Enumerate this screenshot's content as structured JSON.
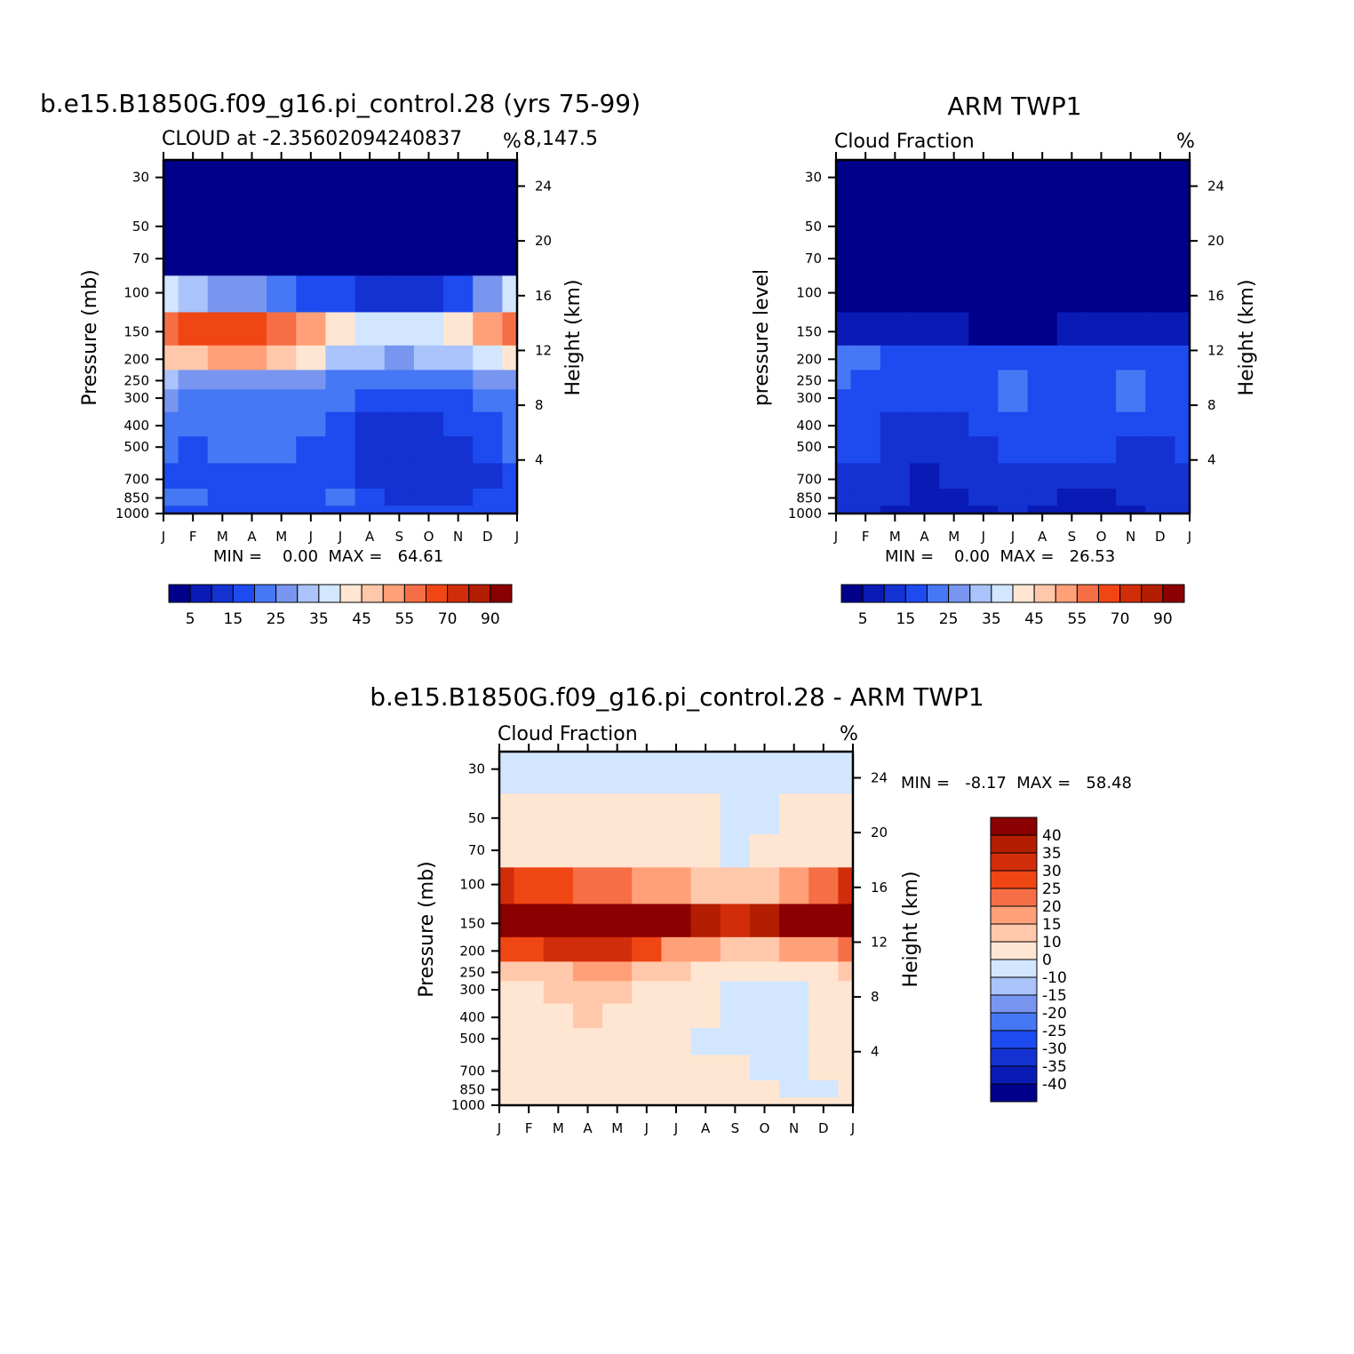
{
  "colors": {
    "levels": [
      "#00008b",
      "#0a1ab4",
      "#1432d2",
      "#1e4bf0",
      "#4678f5",
      "#7896f0",
      "#aac3fa",
      "#d2e6ff",
      "#ffe6d2",
      "#ffc8aa",
      "#ffa078",
      "#f56e46",
      "#f04614",
      "#d22d0a",
      "#b41e00",
      "#8b0000"
    ]
  },
  "top_left": {
    "title": "b.e15.B1850G.f09_g16.pi_control.28 (yrs 75-99)",
    "subtitle_left": "CLOUD at -2.35602094240837",
    "subtitle_right": "8,147.5",
    "units": "%",
    "ylabel": "Pressure (mb)",
    "ylabel_right": "Height (km)",
    "minmax": "MIN =    0.00  MAX =   64.61",
    "colorbar_labels": [
      "5",
      "15",
      "25",
      "35",
      "45",
      "55",
      "70",
      "90"
    ]
  },
  "top_right": {
    "title": "ARM TWP1",
    "subtitle_left": "Cloud Fraction",
    "units": "%",
    "ylabel": "pressure level",
    "ylabel_right": "Height (km)",
    "minmax": "MIN =    0.00  MAX =   26.53",
    "colorbar_labels": [
      "5",
      "15",
      "25",
      "35",
      "45",
      "55",
      "70",
      "90"
    ]
  },
  "bottom": {
    "title": "b.e15.B1850G.f09_g16.pi_control.28 - ARM TWP1",
    "subtitle_left": "Cloud Fraction",
    "units": "%",
    "ylabel": "Pressure (mb)",
    "ylabel_right": "Height (km)",
    "minmax": "MIN =   -8.17  MAX =   58.48",
    "colorbar_labels": [
      "40",
      "35",
      "30",
      "25",
      "20",
      "15",
      "10",
      "0",
      "-10",
      "-15",
      "-20",
      "-25",
      "-30",
      "-35",
      "-40"
    ]
  },
  "axes": {
    "months": [
      "J",
      "F",
      "M",
      "A",
      "M",
      "J",
      "J",
      "A",
      "S",
      "O",
      "N",
      "D",
      "J"
    ],
    "pressure_ticks": [
      "30",
      "50",
      "70",
      "100",
      "150",
      "200",
      "250",
      "300",
      "400",
      "500",
      "700",
      "850",
      "1000"
    ],
    "height_ticks": [
      "24",
      "20",
      "16",
      "12",
      "8",
      "4"
    ]
  },
  "chart_data": [
    {
      "type": "heatmap",
      "title": "b.e15.B1850G.f09_g16.pi_control.28 (yrs 75-99)",
      "subtitle": "CLOUD at -2.35602094240837 8,147.5",
      "xlabel": "",
      "ylabel": "Pressure (mb)",
      "ylabel_right": "Height (km)",
      "x": [
        "J",
        "F",
        "M",
        "A",
        "M",
        "J",
        "J",
        "A",
        "S",
        "O",
        "N",
        "D",
        "J"
      ],
      "y": [
        30,
        50,
        70,
        100,
        150,
        200,
        250,
        300,
        400,
        500,
        700,
        850,
        1000
      ],
      "y_scale": "log",
      "ylim": [
        1000,
        25
      ],
      "levels": [
        5,
        10,
        15,
        20,
        25,
        30,
        35,
        40,
        45,
        50,
        55,
        60,
        70,
        80,
        90
      ],
      "min": 0.0,
      "max": 64.61,
      "units": "%",
      "values": [
        [
          0,
          0,
          0,
          0,
          0,
          0,
          0,
          0,
          0,
          0,
          0,
          0,
          0
        ],
        [
          0,
          0,
          0,
          0,
          0,
          0,
          0,
          0,
          0,
          0,
          0,
          0,
          0
        ],
        [
          0,
          0,
          0,
          0,
          0,
          0,
          0,
          0,
          0,
          0,
          0,
          0,
          0
        ],
        [
          35,
          30,
          28,
          25,
          22,
          18,
          15,
          14,
          13,
          14,
          16,
          25,
          35
        ],
        [
          55,
          60,
          62,
          62,
          58,
          52,
          42,
          38,
          36,
          38,
          42,
          50,
          58
        ],
        [
          45,
          48,
          50,
          50,
          48,
          42,
          32,
          30,
          28,
          30,
          32,
          38,
          42
        ],
        [
          30,
          28,
          28,
          28,
          27,
          26,
          24,
          22,
          20,
          20,
          22,
          25,
          28
        ],
        [
          25,
          24,
          24,
          24,
          23,
          22,
          20,
          18,
          16,
          16,
          18,
          20,
          22
        ],
        [
          22,
          20,
          20,
          21,
          20,
          20,
          18,
          14,
          13,
          14,
          15,
          18,
          20
        ],
        [
          20,
          18,
          22,
          22,
          20,
          18,
          16,
          14,
          12,
          12,
          14,
          18,
          20
        ],
        [
          18,
          18,
          18,
          16,
          16,
          16,
          15,
          14,
          12,
          10,
          10,
          14,
          16
        ],
        [
          20,
          20,
          18,
          18,
          18,
          18,
          20,
          16,
          14,
          12,
          12,
          15,
          18
        ],
        [
          15,
          15,
          15,
          15,
          15,
          15,
          15,
          15,
          15,
          15,
          15,
          15,
          15
        ]
      ]
    },
    {
      "type": "heatmap",
      "title": "ARM TWP1",
      "subtitle": "Cloud Fraction",
      "xlabel": "",
      "ylabel": "pressure level",
      "ylabel_right": "Height (km)",
      "x": [
        "J",
        "F",
        "M",
        "A",
        "M",
        "J",
        "J",
        "A",
        "S",
        "O",
        "N",
        "D",
        "J"
      ],
      "y": [
        30,
        50,
        70,
        100,
        150,
        200,
        250,
        300,
        400,
        500,
        700,
        850,
        1000
      ],
      "y_scale": "log",
      "ylim": [
        1000,
        25
      ],
      "levels": [
        5,
        10,
        15,
        20,
        25,
        30,
        35,
        40,
        45,
        50,
        55,
        60,
        70,
        80,
        90
      ],
      "min": 0.0,
      "max": 26.53,
      "units": "%",
      "values": [
        [
          0,
          0,
          0,
          0,
          0,
          0,
          0,
          0,
          0,
          0,
          0,
          0,
          0
        ],
        [
          0,
          0,
          0,
          0,
          0,
          0,
          0,
          0,
          0,
          0,
          0,
          0,
          0
        ],
        [
          0,
          0,
          0,
          0,
          0,
          0,
          0,
          0,
          0,
          0,
          0,
          0,
          0
        ],
        [
          1,
          1,
          1,
          1,
          1,
          1,
          1,
          1,
          1,
          1,
          1,
          1,
          1
        ],
        [
          6,
          6,
          5,
          5,
          5,
          4,
          4,
          4,
          5,
          5,
          5,
          6,
          6
        ],
        [
          20,
          20,
          16,
          15,
          15,
          15,
          18,
          16,
          16,
          16,
          16,
          16,
          18
        ],
        [
          20,
          18,
          16,
          15,
          15,
          16,
          22,
          16,
          16,
          16,
          20,
          16,
          18
        ],
        [
          18,
          16,
          15,
          15,
          15,
          16,
          22,
          16,
          15,
          15,
          20,
          16,
          16
        ],
        [
          15,
          15,
          14,
          11,
          14,
          15,
          18,
          16,
          15,
          15,
          15,
          15,
          15
        ],
        [
          15,
          15,
          14,
          10,
          12,
          14,
          16,
          16,
          15,
          15,
          14,
          14,
          15
        ],
        [
          14,
          12,
          11,
          8,
          10,
          11,
          12,
          11,
          10,
          10,
          11,
          12,
          14
        ],
        [
          12,
          12,
          10,
          8,
          9,
          10,
          11,
          10,
          9,
          9,
          10,
          11,
          12
        ],
        [
          10,
          10,
          9,
          8,
          8,
          9,
          10,
          9,
          8,
          8,
          9,
          10,
          10
        ]
      ]
    },
    {
      "type": "heatmap",
      "title": "b.e15.B1850G.f09_g16.pi_control.28 - ARM TWP1",
      "subtitle": "Cloud Fraction",
      "xlabel": "",
      "ylabel": "Pressure (mb)",
      "ylabel_right": "Height (km)",
      "x": [
        "J",
        "F",
        "M",
        "A",
        "M",
        "J",
        "J",
        "A",
        "S",
        "O",
        "N",
        "D",
        "J"
      ],
      "y": [
        30,
        50,
        70,
        100,
        150,
        200,
        250,
        300,
        400,
        500,
        700,
        850,
        1000
      ],
      "y_scale": "log",
      "ylim": [
        1000,
        25
      ],
      "levels": [
        -40,
        -35,
        -30,
        -25,
        -20,
        -15,
        -10,
        0,
        10,
        15,
        20,
        25,
        30,
        35,
        40
      ],
      "min": -8.17,
      "max": 58.48,
      "units": "%",
      "values": [
        [
          -2,
          -2,
          -2,
          -2,
          -2,
          -2,
          -2,
          -2,
          -2,
          -2,
          -2,
          -2,
          -2
        ],
        [
          2,
          2,
          2,
          2,
          2,
          2,
          2,
          2,
          -2,
          -2,
          2,
          2,
          2
        ],
        [
          4,
          4,
          4,
          4,
          4,
          4,
          4,
          4,
          -2,
          4,
          4,
          4,
          4
        ],
        [
          30,
          28,
          25,
          22,
          20,
          18,
          15,
          14,
          12,
          14,
          16,
          20,
          30
        ],
        [
          50,
          55,
          58,
          58,
          55,
          48,
          40,
          35,
          32,
          35,
          40,
          45,
          55
        ],
        [
          25,
          28,
          30,
          32,
          30,
          25,
          18,
          15,
          12,
          14,
          16,
          18,
          22
        ],
        [
          10,
          12,
          14,
          16,
          15,
          12,
          10,
          8,
          4,
          4,
          5,
          8,
          10
        ],
        [
          6,
          8,
          10,
          12,
          10,
          8,
          5,
          4,
          -2,
          -2,
          -2,
          4,
          6
        ],
        [
          4,
          5,
          8,
          10,
          8,
          6,
          4,
          2,
          -2,
          -2,
          -2,
          2,
          4
        ],
        [
          2,
          4,
          4,
          8,
          4,
          3,
          2,
          -2,
          -2,
          -2,
          -2,
          2,
          4
        ],
        [
          2,
          2,
          4,
          4,
          4,
          4,
          2,
          2,
          2,
          -2,
          -2,
          2,
          2
        ],
        [
          2,
          2,
          2,
          2,
          2,
          2,
          2,
          2,
          2,
          2,
          -2,
          -2,
          2
        ],
        [
          2,
          2,
          2,
          2,
          2,
          2,
          2,
          2,
          2,
          2,
          2,
          2,
          2
        ]
      ]
    }
  ]
}
